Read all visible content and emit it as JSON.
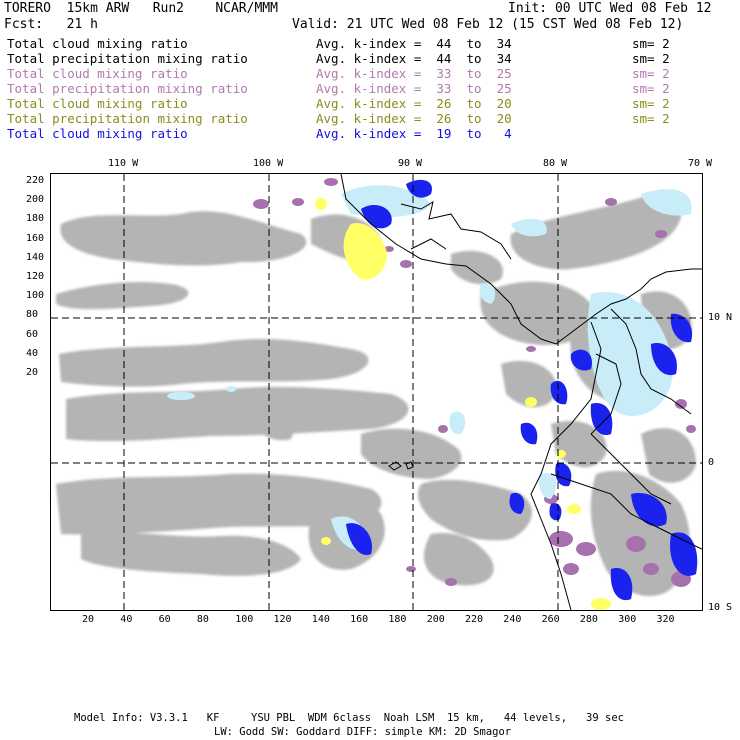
{
  "header": {
    "run_title": "TORERO  15km ARW   Run2    NCAR/MMM",
    "init": "Init: 00 UTC Wed 08 Feb 12",
    "fcst": "Fcst:   21 h",
    "valid": "Valid: 21 UTC Wed 08 Feb 12 (15 CST Wed 08 Feb 12)"
  },
  "colors": {
    "black": "#000000",
    "purple": "#b07ab0",
    "olive": "#8c8c1e",
    "blue": "#1010e0",
    "gray_field": "#b4b4b4",
    "light_purple_field": "#a671ad",
    "yellow_field": "#ffff66",
    "light_blue_field": "#c8ecf8",
    "blue_field": "#1a22ee"
  },
  "fields": [
    {
      "name": "Total cloud mixing ratio",
      "avg": "Avg. k-index =  44  to  34",
      "sm": "sm= 2",
      "color": "#000000"
    },
    {
      "name": "Total precipitation mixing ratio",
      "avg": "Avg. k-index =  44  to  34",
      "sm": "sm= 2",
      "color": "#000000"
    },
    {
      "name": "Total cloud mixing ratio",
      "avg": "Avg. k-index =  33  to  25",
      "sm": "sm= 2",
      "color": "#b07ab0"
    },
    {
      "name": "Total precipitation mixing ratio",
      "avg": "Avg. k-index =  33  to  25",
      "sm": "sm= 2",
      "color": "#b07ab0"
    },
    {
      "name": "Total cloud mixing ratio",
      "avg": "Avg. k-index =  26  to  20",
      "sm": "sm= 2",
      "color": "#8c8c1e"
    },
    {
      "name": "Total precipitation mixing ratio",
      "avg": "Avg. k-index =  26  to  20",
      "sm": "sm= 2",
      "color": "#8c8c1e"
    },
    {
      "name": "Total cloud mixing ratio",
      "avg": "Avg. k-index =  19  to   4",
      "sm": "",
      "color": "#1010e0"
    }
  ],
  "map": {
    "lon_labels": [
      "110 W",
      "100 W",
      "90 W",
      "80 W",
      "70 W"
    ],
    "lat_labels": [
      "10 N",
      "0",
      "10 S"
    ],
    "y_ticks": [
      "220",
      "200",
      "180",
      "160",
      "140",
      "120",
      "100",
      "80",
      "60",
      "40",
      "20"
    ],
    "x_ticks": [
      "20",
      "40",
      "60",
      "80",
      "100",
      "120",
      "140",
      "160",
      "180",
      "200",
      "220",
      "240",
      "260",
      "280",
      "300",
      "320"
    ]
  },
  "footer": {
    "line1": "Model Info: V3.3.1   KF     YSU PBL  WDM 6class  Noah LSM  15 km,   44 levels,   39 sec",
    "line2": "LW: Godd SW: Goddard DIFF: simple KM: 2D Smagor"
  }
}
